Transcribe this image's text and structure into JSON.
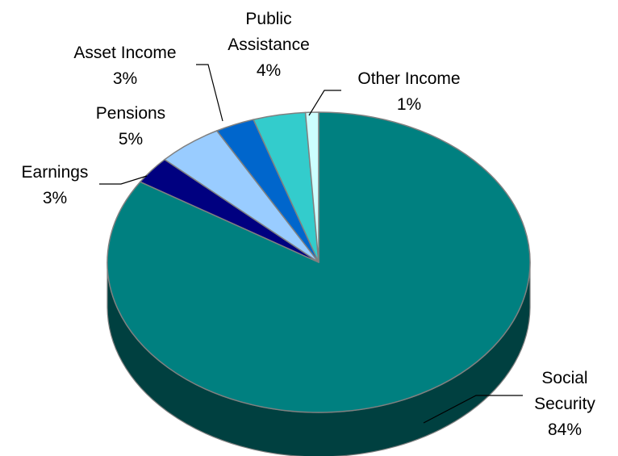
{
  "chart_data": {
    "type": "pie",
    "style": "3d",
    "title": "",
    "slices": [
      {
        "label": [
          "Social",
          "Security"
        ],
        "value": 84,
        "value_label": "84%",
        "color": "#008080",
        "side_color": "#004040"
      },
      {
        "label": [
          "Earnings"
        ],
        "value": 3,
        "value_label": "3%",
        "color": "#000080",
        "side_color": "#000040"
      },
      {
        "label": [
          "Pensions"
        ],
        "value": 5,
        "value_label": "5%",
        "color": "#99CCFF",
        "side_color": "#4d6680"
      },
      {
        "label": [
          "Asset Income"
        ],
        "value": 3,
        "value_label": "3%",
        "color": "#0066CC",
        "side_color": "#003366"
      },
      {
        "label": [
          "Public",
          "Assistance"
        ],
        "value": 4,
        "value_label": "4%",
        "color": "#33CCCC",
        "side_color": "#1a6666"
      },
      {
        "label": [
          "Other Income"
        ],
        "value": 1,
        "value_label": "1%",
        "color": "#CCFFFF",
        "side_color": "#668080"
      }
    ],
    "legend": "none",
    "data_labels": "outside with leader lines"
  }
}
